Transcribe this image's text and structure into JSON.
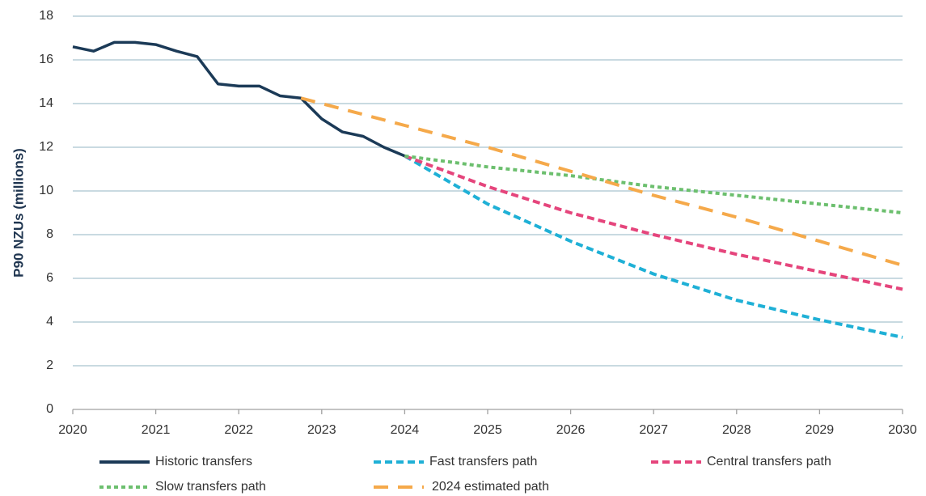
{
  "chart_data": {
    "type": "line",
    "y_label": "P90 NZUs (millions)",
    "xlim": [
      2020,
      2030
    ],
    "xticks": [
      2020,
      2021,
      2022,
      2023,
      2024,
      2025,
      2026,
      2027,
      2028,
      2029,
      2030
    ],
    "ylim": [
      0,
      18
    ],
    "yticks": [
      0,
      2,
      4,
      6,
      8,
      10,
      12,
      14,
      16,
      18
    ],
    "grid": true,
    "legend": "bottom",
    "series": [
      {
        "name": "Historic transfers",
        "color": "#1b3a57",
        "dash": "solid",
        "x": [
          2020,
          2020.25,
          2020.5,
          2020.75,
          2021,
          2021.25,
          2021.5,
          2021.75,
          2022,
          2022.25,
          2022.5,
          2022.75,
          2023,
          2023.25,
          2023.5,
          2023.75,
          2024
        ],
        "values": [
          16.6,
          16.4,
          16.8,
          16.8,
          16.7,
          16.4,
          16.15,
          14.9,
          14.8,
          14.8,
          14.35,
          14.25,
          13.3,
          12.7,
          12.5,
          12.0,
          11.6
        ]
      },
      {
        "name": "Fast transfers path",
        "color": "#1fb0d6",
        "dash": "short",
        "x": [
          2024,
          2025,
          2026,
          2027,
          2028,
          2029,
          2030
        ],
        "values": [
          11.6,
          9.4,
          7.7,
          6.2,
          5.0,
          4.1,
          3.3
        ]
      },
      {
        "name": "Central transfers path",
        "color": "#e5457c",
        "dash": "short",
        "x": [
          2024,
          2025,
          2026,
          2027,
          2028,
          2029,
          2030
        ],
        "values": [
          11.6,
          10.2,
          9.0,
          8.0,
          7.1,
          6.3,
          5.5
        ]
      },
      {
        "name": "Slow transfers path",
        "color": "#6cbf6e",
        "dash": "dot",
        "x": [
          2024,
          2025,
          2026,
          2027,
          2028,
          2029,
          2030
        ],
        "values": [
          11.6,
          11.1,
          10.7,
          10.2,
          9.8,
          9.4,
          9.0
        ]
      },
      {
        "name": "2024 estimated path",
        "color": "#f5a94a",
        "dash": "long",
        "x": [
          2022.75,
          2024,
          2025,
          2026,
          2027,
          2028,
          2029,
          2030
        ],
        "values": [
          14.25,
          13.0,
          12.0,
          10.9,
          9.8,
          8.8,
          7.7,
          6.6
        ]
      }
    ]
  }
}
